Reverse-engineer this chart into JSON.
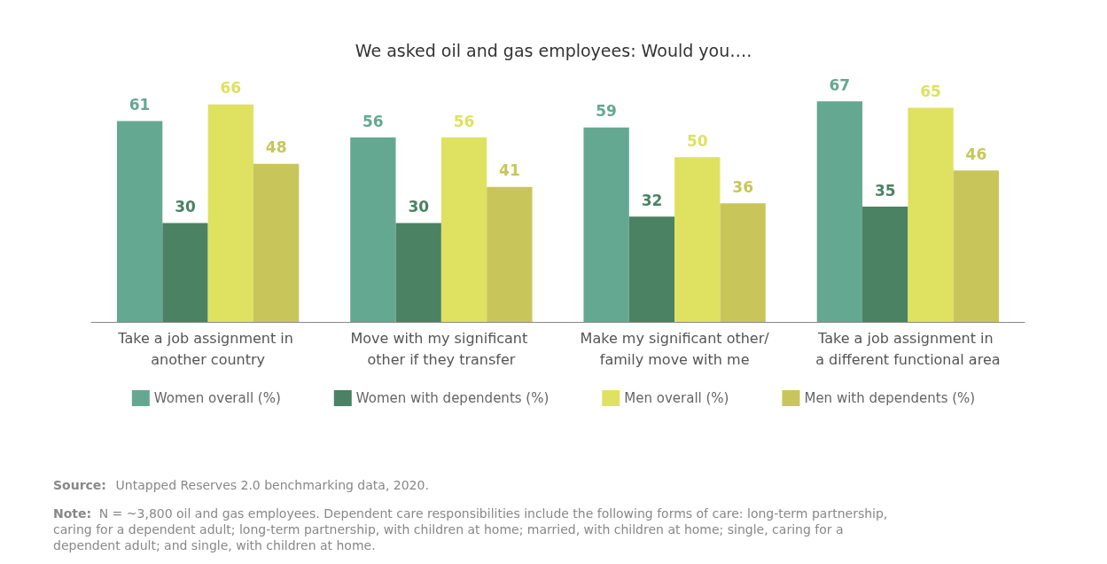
{
  "chart_data": {
    "type": "bar",
    "title": "We asked oil and gas employees: Would you….",
    "categories": [
      "Take a job assignment in another country",
      "Move with my significant other if they transfer",
      "Make my significant other/family move with me",
      "Take a job assignment in a different functional area"
    ],
    "series": [
      {
        "name": "Women overall (%)",
        "color": "#65a891",
        "values": [
          61,
          56,
          59,
          67
        ]
      },
      {
        "name": "Women with dependents (%)",
        "color": "#4a8263",
        "values": [
          30,
          30,
          32,
          35
        ]
      },
      {
        "name": "Men overall (%)",
        "color": "#dfe160",
        "values": [
          66,
          56,
          50,
          65
        ]
      },
      {
        "name": "Men with dependents (%)",
        "color": "#c8c65a",
        "values": [
          48,
          41,
          36,
          46
        ]
      }
    ],
    "data_labels": true,
    "legend": "bottom",
    "annotations": [
      "Source: Untapped Reserves 2.0 benchmarking data, 2020.",
      "Note: N = ~3,800 oil and gas employees. Dependent care responsibilities include the following forms of care: long-term partnership, caring for a dependent adult; long-term partnership, with children at home; married, with children at home; single, caring for a dependent adult; and single, with children at home."
    ]
  }
}
